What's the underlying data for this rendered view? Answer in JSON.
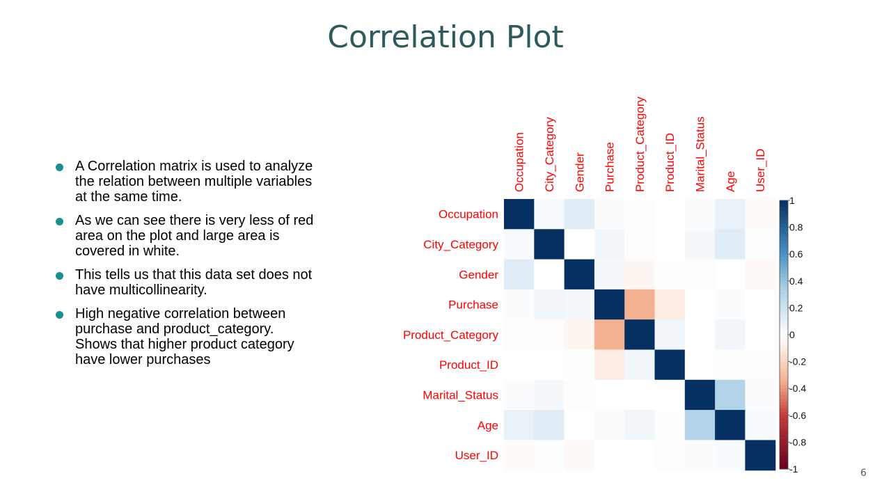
{
  "slide": {
    "title": "Correlation Plot",
    "page_number": "6",
    "bullets": [
      "A Correlation matrix is used to analyze the relation between multiple variables at the same time.",
      "As we can see there is very less of red area on the plot and large area is covered in white.",
      "This tells us that this data set does not have multicollinearity.",
      "High negative correlation between purchase and product_category. Shows that higher product category have lower purchases"
    ]
  },
  "chart_data": {
    "type": "heatmap",
    "title": "",
    "variables": [
      "Occupation",
      "City_Category",
      "Gender",
      "Purchase",
      "Product_Category",
      "Product_ID",
      "Marital_Status",
      "Age",
      "User_ID"
    ],
    "matrix": [
      [
        1.0,
        0.03,
        0.12,
        0.02,
        -0.01,
        0.0,
        0.02,
        0.09,
        -0.02
      ],
      [
        0.03,
        1.0,
        0.0,
        0.06,
        -0.01,
        0.0,
        0.04,
        0.12,
        0.01
      ],
      [
        0.12,
        0.0,
        1.0,
        0.04,
        -0.05,
        0.01,
        -0.01,
        0.0,
        -0.03
      ],
      [
        0.02,
        0.06,
        0.04,
        1.0,
        -0.34,
        -0.1,
        0.0,
        0.02,
        0.0
      ],
      [
        -0.01,
        -0.01,
        -0.05,
        -0.34,
        1.0,
        0.06,
        0.0,
        0.06,
        0.0
      ],
      [
        0.0,
        0.0,
        0.01,
        -0.1,
        0.06,
        1.0,
        0.0,
        0.01,
        -0.01
      ],
      [
        0.02,
        0.04,
        -0.01,
        0.0,
        0.0,
        0.0,
        1.0,
        0.31,
        0.02
      ],
      [
        0.09,
        0.12,
        0.0,
        0.02,
        0.06,
        0.01,
        0.31,
        1.0,
        0.03
      ],
      [
        -0.02,
        0.01,
        -0.03,
        0.0,
        0.0,
        -0.01,
        0.02,
        0.03,
        1.0
      ]
    ],
    "colorbar": {
      "range": [
        -1,
        1
      ],
      "ticks": [
        "1",
        "0.8",
        "0.6",
        "0.4",
        "0.2",
        "0",
        "-0.2",
        "-0.4",
        "-0.6",
        "-0.8",
        "-1"
      ],
      "colors": {
        "negative": "#67001f",
        "zero": "#ffffff",
        "positive": "#053061"
      }
    },
    "label_color": "#ff0000"
  }
}
